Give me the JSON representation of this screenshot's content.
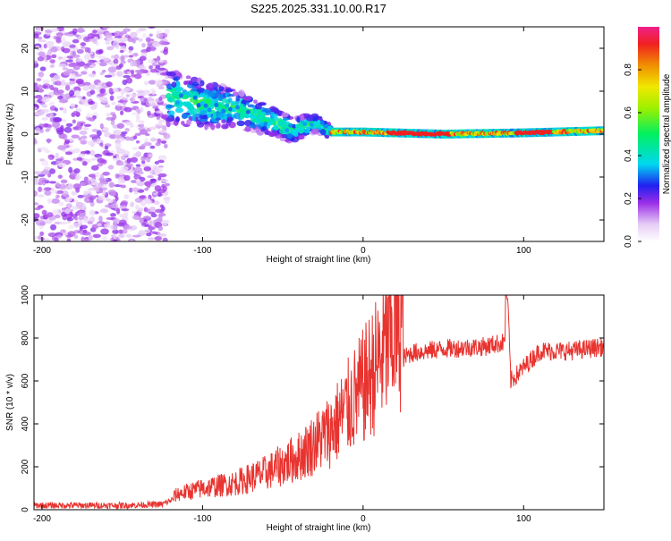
{
  "title": "S225.2025.331.10.00.R17",
  "chart_data": [
    {
      "type": "heatmap",
      "xlabel": "Height of straight line (km)",
      "ylabel": "Frequency (Hz)",
      "xlim": [
        -205,
        150
      ],
      "ylim": [
        -25,
        25
      ],
      "x_ticks": [
        -200,
        -100,
        0,
        100
      ],
      "y_ticks": [
        -20,
        -10,
        0,
        10,
        20
      ],
      "colorbar": {
        "label": "Normalized spectral amplitude",
        "range": [
          0,
          1
        ],
        "ticks": [
          0.0,
          0.2,
          0.4,
          0.6,
          0.8
        ]
      },
      "ridge": {
        "description_points": [
          {
            "x": -120,
            "y": 8.5
          },
          {
            "x": -100,
            "y": 7
          },
          {
            "x": -80,
            "y": 6
          },
          {
            "x": -60,
            "y": 3.5
          },
          {
            "x": -45,
            "y": 1
          },
          {
            "x": -30,
            "y": 2.5
          },
          {
            "x": -20,
            "y": 0.5
          },
          {
            "x": 0,
            "y": 0.5
          },
          {
            "x": 50,
            "y": 0
          },
          {
            "x": 100,
            "y": 0.3
          },
          {
            "x": 150,
            "y": 0.8
          }
        ]
      }
    },
    {
      "type": "line",
      "xlabel": "Height of straight line (km)",
      "ylabel": "SNR (10 * v/v)",
      "xlim": [
        -205,
        150
      ],
      "ylim": [
        0,
        1000
      ],
      "x_ticks": [
        -200,
        -100,
        0,
        100
      ],
      "y_ticks": [
        0,
        200,
        400,
        600,
        800,
        1000
      ],
      "series": [
        {
          "name": "SNR",
          "color": "#e8332f",
          "x": [
            -205,
            -180,
            -150,
            -125,
            -115,
            -100,
            -80,
            -60,
            -40,
            -20,
            -10,
            0,
            10,
            20,
            30,
            50,
            75,
            88,
            90,
            92,
            110,
            130,
            150
          ],
          "values": [
            20,
            20,
            20,
            25,
            60,
            80,
            100,
            140,
            200,
            300,
            380,
            460,
            560,
            680,
            730,
            750,
            760,
            780,
            1000,
            600,
            740,
            740,
            760
          ]
        }
      ]
    }
  ]
}
